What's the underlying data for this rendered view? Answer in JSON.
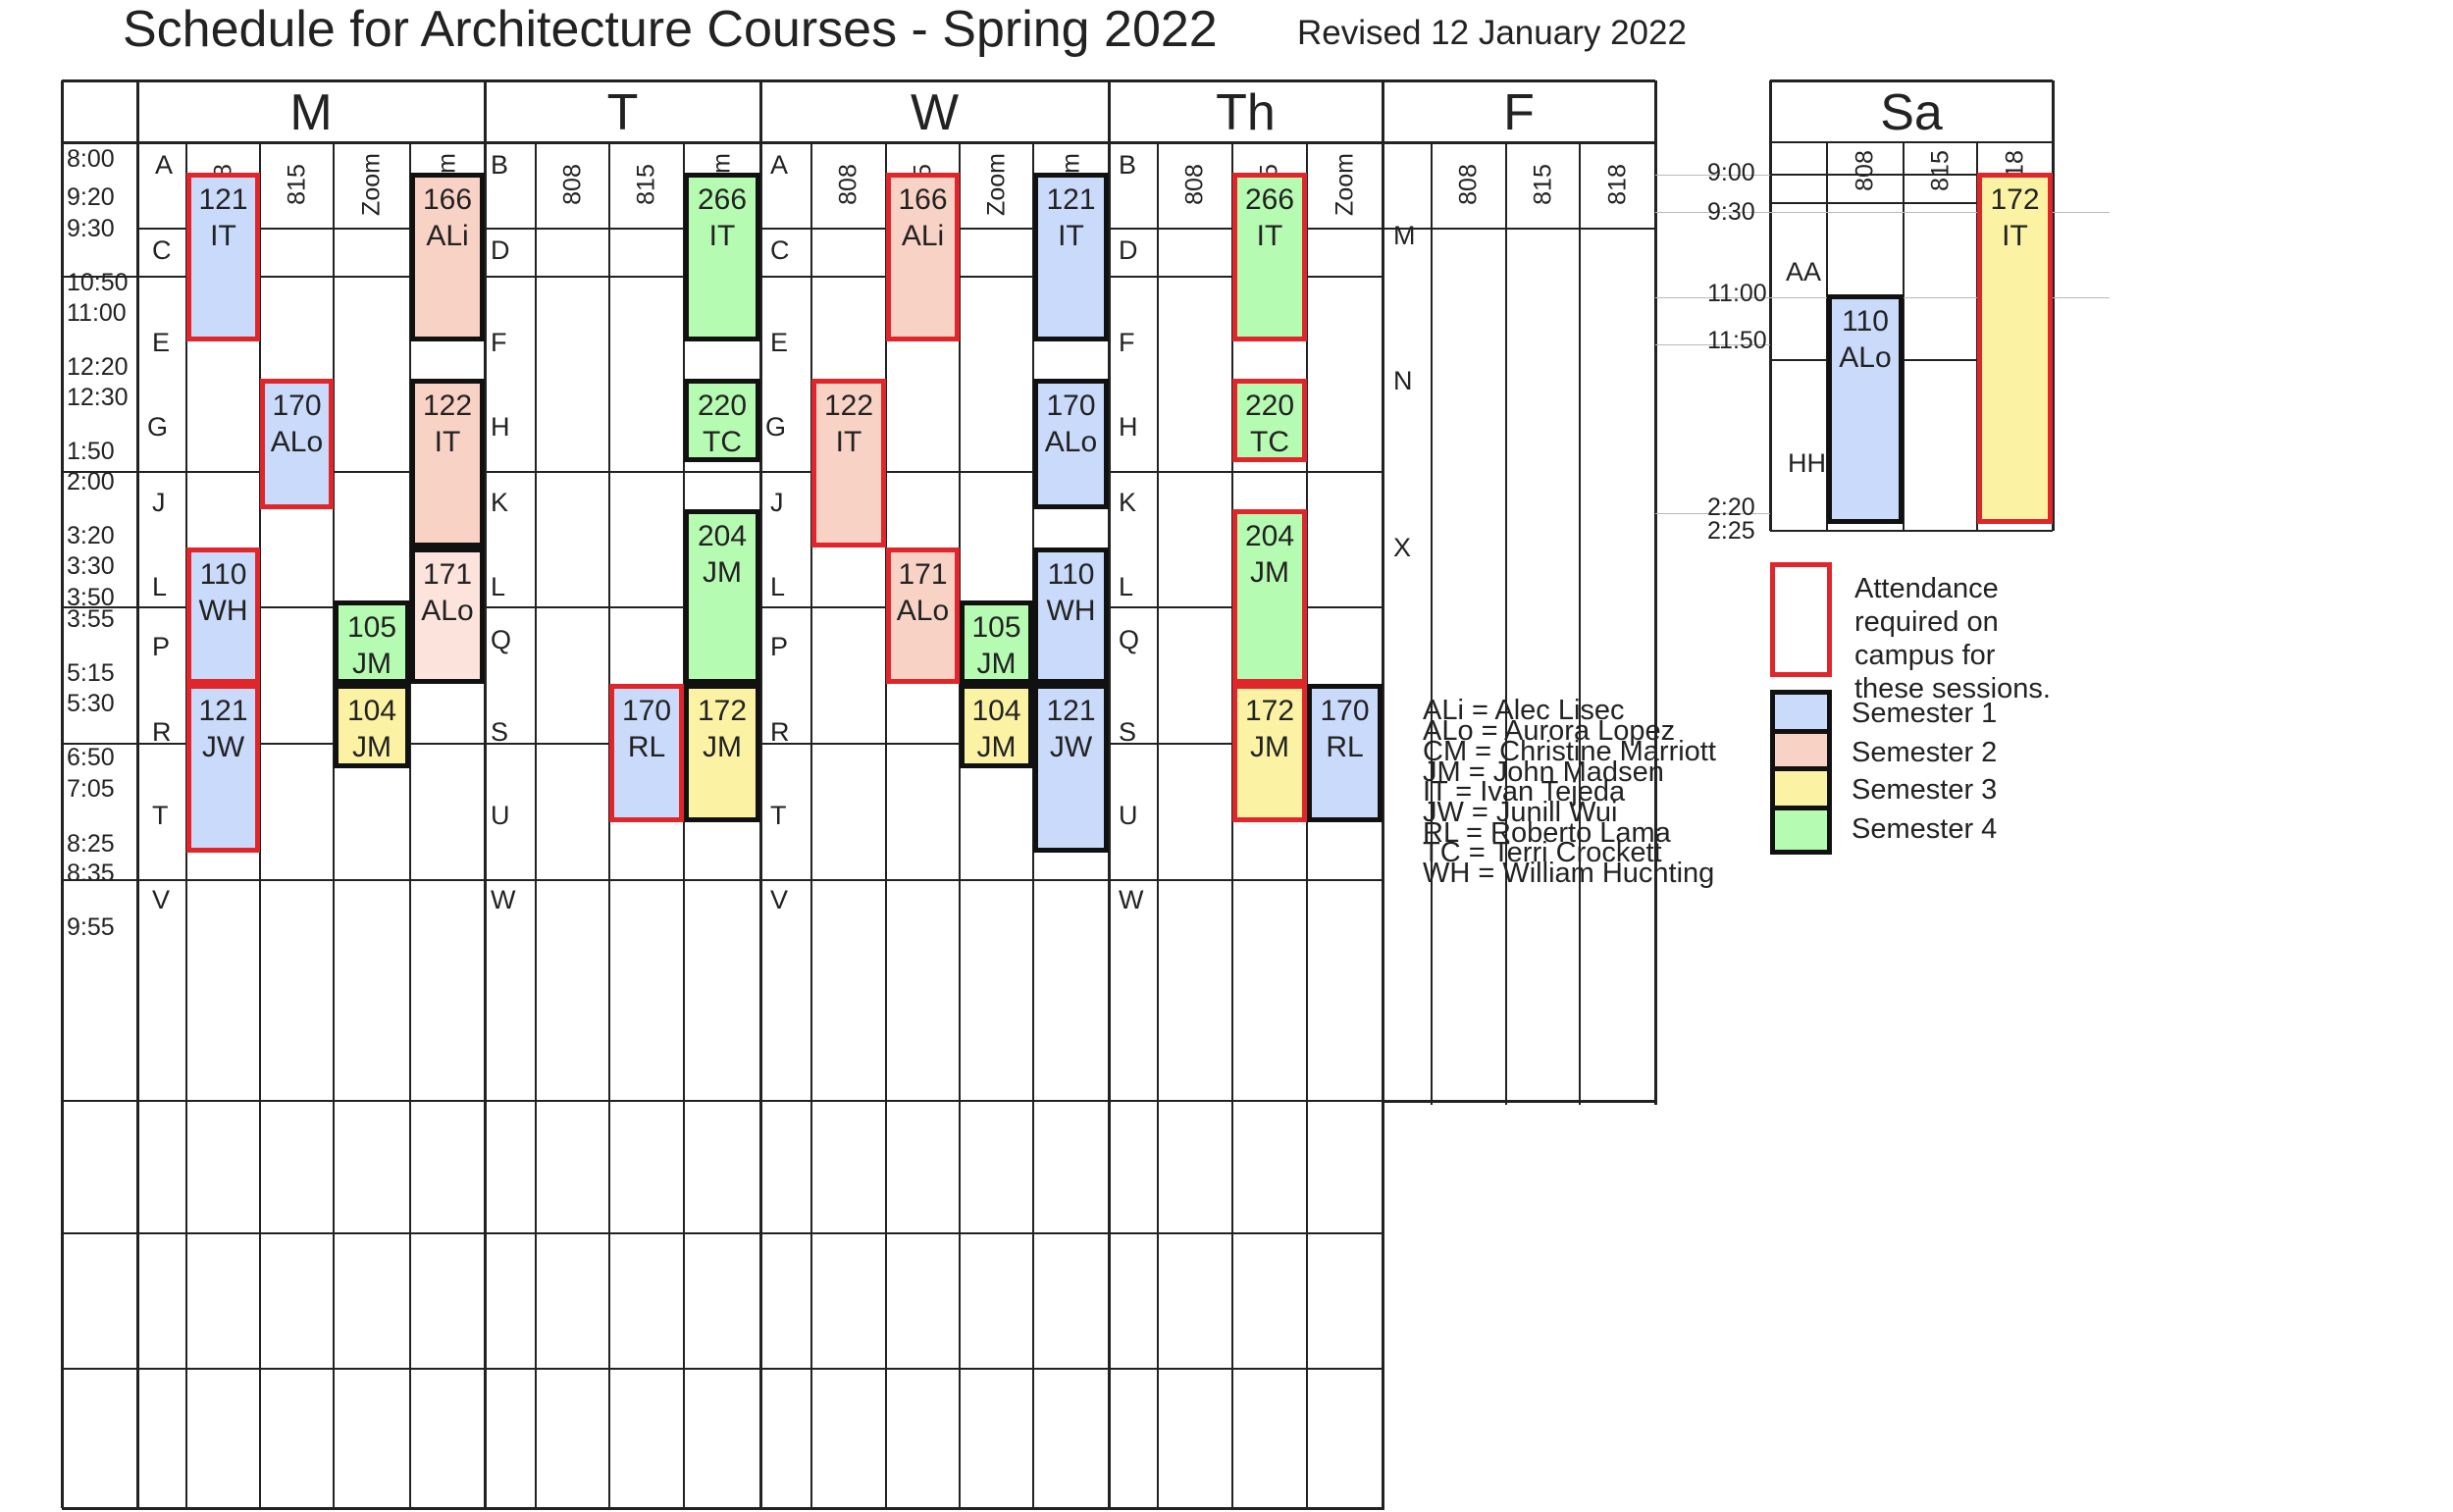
{
  "title": "Schedule for Architecture Courses - Spring 2022",
  "revised": "Revised 12 January 2022",
  "colors": {
    "sem1": "#c9dafa",
    "sem2": "#f9d2c6",
    "sem2_light": "#fce4dc",
    "sem3": "#fbf3a3",
    "sem4": "#b6fbb2",
    "attendance_border": "#e0262b",
    "border": "#111111"
  },
  "days": {
    "m": "M",
    "t": "T",
    "w": "W",
    "th": "Th",
    "f": "F",
    "sa": "Sa"
  },
  "rooms": {
    "r808": "808",
    "r815": "815",
    "r818": "818",
    "zoom": "Zoom"
  },
  "times": {
    "t0800": "8:00",
    "t0920": "9:20",
    "t0930": "9:30",
    "t1050": "10:50",
    "t1100": "11:00",
    "t1220": "12:20",
    "t1230": "12:30",
    "t0150": "1:50",
    "t0200": "2:00",
    "t0320": "3:20",
    "t0330": "3:30",
    "t0350": "3:50",
    "t0355": "3:55",
    "t0515": "5:15",
    "t0530": "5:30",
    "t0650": "6:50",
    "t0705": "7:05",
    "t0825": "8:25",
    "t0835": "8:35",
    "t0955": "9:55"
  },
  "sat_times": {
    "s0900": "9:00",
    "s0930": "9:30",
    "s1100": "11:00",
    "s1150": "11:50",
    "s0220": "2:20",
    "s0225": "2:25"
  },
  "blocks": {
    "A": "A",
    "B": "B",
    "C": "C",
    "D": "D",
    "E": "E",
    "F": "F",
    "G": "G",
    "H": "H",
    "J": "J",
    "K": "K",
    "L": "L",
    "P": "P",
    "Q": "Q",
    "R": "R",
    "S": "S",
    "T": "T",
    "U": "U",
    "V": "V",
    "W": "W",
    "M": "M",
    "N": "N",
    "X": "X",
    "AA": "AA",
    "HH": "HH"
  },
  "courses": {
    "m121it": {
      "num": "121",
      "inst": "IT",
      "sem": "1",
      "attendance": true
    },
    "m166ali": {
      "num": "166",
      "inst": "ALi",
      "sem": "2",
      "attendance": false
    },
    "m170alo": {
      "num": "170",
      "inst": "ALo",
      "sem": "1",
      "attendance": true
    },
    "m122it": {
      "num": "122",
      "inst": "IT",
      "sem": "2",
      "attendance": false
    },
    "m110wh": {
      "num": "110",
      "inst": "WH",
      "sem": "1",
      "attendance": true
    },
    "m171alo": {
      "num": "171",
      "inst": "ALo",
      "sem": "2",
      "attendance": false
    },
    "m105jm": {
      "num": "105",
      "inst": "JM",
      "sem": "4",
      "attendance": false
    },
    "m121jw": {
      "num": "121",
      "inst": "JW",
      "sem": "1",
      "attendance": true
    },
    "m104jm": {
      "num": "104",
      "inst": "JM",
      "sem": "3",
      "attendance": false
    },
    "t266it": {
      "num": "266",
      "inst": "IT",
      "sem": "4",
      "attendance": false
    },
    "t220tc": {
      "num": "220",
      "inst": "TC",
      "sem": "4",
      "attendance": false
    },
    "t204jm": {
      "num": "204",
      "inst": "JM",
      "sem": "4",
      "attendance": false
    },
    "t170rl": {
      "num": "170",
      "inst": "RL",
      "sem": "1",
      "attendance": true
    },
    "t172jm": {
      "num": "172",
      "inst": "JM",
      "sem": "3",
      "attendance": false
    },
    "w166ali": {
      "num": "166",
      "inst": "ALi",
      "sem": "2",
      "attendance": true
    },
    "w121it": {
      "num": "121",
      "inst": "IT",
      "sem": "1",
      "attendance": false
    },
    "w122it": {
      "num": "122",
      "inst": "IT",
      "sem": "2",
      "attendance": true
    },
    "w170alo": {
      "num": "170",
      "inst": "ALo",
      "sem": "1",
      "attendance": false
    },
    "w171alo": {
      "num": "171",
      "inst": "ALo",
      "sem": "2",
      "attendance": true
    },
    "w105jm": {
      "num": "105",
      "inst": "JM",
      "sem": "4",
      "attendance": false
    },
    "w110wh": {
      "num": "110",
      "inst": "WH",
      "sem": "1",
      "attendance": false
    },
    "w104jm": {
      "num": "104",
      "inst": "JM",
      "sem": "3",
      "attendance": false
    },
    "w121jw": {
      "num": "121",
      "inst": "JW",
      "sem": "1",
      "attendance": false
    },
    "th266it": {
      "num": "266",
      "inst": "IT",
      "sem": "4",
      "attendance": true
    },
    "th220tc": {
      "num": "220",
      "inst": "TC",
      "sem": "4",
      "attendance": true
    },
    "th204jm": {
      "num": "204",
      "inst": "JM",
      "sem": "4",
      "attendance": true
    },
    "th172jm": {
      "num": "172",
      "inst": "JM",
      "sem": "3",
      "attendance": true
    },
    "th170rl": {
      "num": "170",
      "inst": "RL",
      "sem": "1",
      "attendance": false
    },
    "sa110alo": {
      "num": "110",
      "inst": "ALo",
      "sem": "1",
      "attendance": false
    },
    "sa172it": {
      "num": "172",
      "inst": "IT",
      "sem": "3",
      "attendance": true
    }
  },
  "legend": {
    "attendance": "Attendance required on campus for these sessions.",
    "semesters": [
      "Semester 1",
      "Semester 2",
      "Semester 3",
      "Semester 4"
    ],
    "instructors": [
      "ALi = Alec Lisec",
      "ALo = Aurora Lopez",
      "CM = Christine Marriott",
      "JM = John Madsen",
      "IT = Ivan Tejeda",
      "JW = Junill Wui",
      "RL = Roberto Lama",
      "TC = Terri Crockett",
      "WH = William Huchting"
    ]
  }
}
